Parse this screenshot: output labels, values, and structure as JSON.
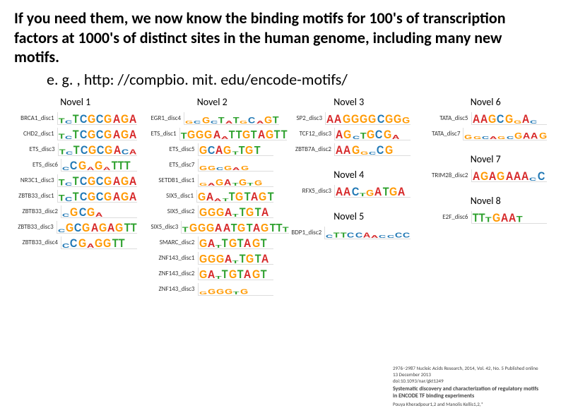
{
  "title_line1": "If you need them, we now know the binding motifs for 100's of transcription factors at 1000's of distinct sites in the human genome, including many new motifs.",
  "subtitle": "e. g. , http: //compbio. mit. edu/encode-motifs/",
  "colors": {
    "A": "#d62728",
    "C": "#1f77b4",
    "G": "#ff9900",
    "T": "#2ca02c",
    "text": "#000000",
    "background": "#ffffff"
  },
  "columns": [
    {
      "header": "Novel 1",
      "rows": [
        {
          "name": "BRCA1_disc1",
          "seq": "TcTCGCGAGA",
          "heights": [
            0.6,
            0.4,
            1,
            1,
            1,
            1,
            1,
            1,
            1,
            1
          ]
        },
        {
          "name": "CHD2_disc1",
          "seq": "TcTCGCGAGA",
          "heights": [
            0.6,
            0.4,
            1,
            1,
            1,
            1,
            1,
            1,
            1,
            1
          ]
        },
        {
          "name": "ETS_disc3",
          "seq": "TcTCGCGACA",
          "heights": [
            0.6,
            0.4,
            1,
            1,
            1,
            1,
            1,
            1,
            0.6,
            0.6
          ]
        },
        {
          "name": "ETS_disc6",
          "seq": "cCGaGaTTT",
          "heights": [
            0.4,
            1,
            1,
            0.4,
            1,
            0.4,
            1,
            1,
            1
          ]
        },
        {
          "name": "NR3C1_disc3",
          "seq": "TCTCGCGAGA",
          "heights": [
            0.7,
            0.4,
            1,
            1,
            1,
            1,
            1,
            1,
            1,
            1
          ]
        },
        {
          "name": "ZBTB33_disc1",
          "seq": "TCTCGCGAGA",
          "heights": [
            0.7,
            0.5,
            1,
            1,
            1,
            1,
            1,
            1,
            1,
            1
          ]
        },
        {
          "name": "ZBTB33_disc2",
          "seq": "cGCGa",
          "heights": [
            0.4,
            1,
            1,
            1,
            0.5
          ]
        },
        {
          "name": "ZBTB33_disc3",
          "seq": "cGCGAGAGTT",
          "heights": [
            0.4,
            1,
            1,
            1,
            1,
            1,
            1,
            1,
            1,
            1
          ]
        },
        {
          "name": "ZBTB33_disc4",
          "seq": "cCGaGGTT",
          "heights": [
            0.5,
            1,
            1,
            0.5,
            1,
            1,
            1,
            1
          ]
        }
      ]
    },
    {
      "header": "Novel 2",
      "rows": [
        {
          "name": "EGR1_disc4",
          "seq": "gcGcTaTgCaGT",
          "heights": [
            0.3,
            0.3,
            0.7,
            0.3,
            0.7,
            0.3,
            0.7,
            0.3,
            0.7,
            0.3,
            0.8,
            0.8
          ]
        },
        {
          "name": "ETS_disc1",
          "seq": "TGGGAaTTGTAGTT",
          "heights": [
            0.7,
            0.9,
            0.9,
            0.9,
            0.9,
            0.3,
            0.9,
            0.9,
            0.9,
            0.9,
            1,
            1,
            1,
            1
          ]
        },
        {
          "name": "ETS_disc5",
          "seq": "GCAGtTGT",
          "heights": [
            0.9,
            0.9,
            1,
            0.9,
            0.4,
            0.9,
            0.9,
            0.9
          ]
        },
        {
          "name": "ETS_disc7",
          "seq": "GGcGaG",
          "heights": [
            0.5,
            0.5,
            0.3,
            0.5,
            0.3,
            0.5
          ]
        },
        {
          "name": "SETDB1_disc1",
          "seq": "gaGAtGtG",
          "heights": [
            0.3,
            0.3,
            0.7,
            0.7,
            0.3,
            0.7,
            0.3,
            0.6
          ]
        },
        {
          "name": "SIX5_disc1",
          "seq": "GAatTGTAGT",
          "heights": [
            0.9,
            0.9,
            0.3,
            0.3,
            1,
            1,
            1,
            1,
            1,
            1
          ]
        },
        {
          "name": "SIX5_disc2",
          "seq": "GGGAtTGTA",
          "heights": [
            0.9,
            0.9,
            0.9,
            0.9,
            0.3,
            1,
            1,
            1,
            1
          ]
        },
        {
          "name": "SIX5_disc3",
          "seq": "TGGGAATGTAGTTT",
          "heights": [
            0.6,
            0.9,
            0.9,
            0.9,
            0.9,
            0.9,
            0.9,
            0.9,
            0.9,
            0.9,
            0.9,
            0.9,
            0.9,
            0.6
          ]
        },
        {
          "name": "SMARC_disc2",
          "seq": "GAtTGTAGT",
          "heights": [
            0.9,
            0.9,
            0.3,
            1,
            1,
            1,
            1,
            1,
            1
          ]
        },
        {
          "name": "ZNF143_disc1",
          "seq": "GGGAtTGTA",
          "heights": [
            0.9,
            0.9,
            0.9,
            0.9,
            0.3,
            1,
            1,
            1,
            1
          ]
        },
        {
          "name": "ZNF143_disc2",
          "seq": "GAtTGTAGT",
          "heights": [
            0.9,
            0.9,
            0.3,
            1,
            1,
            1,
            1,
            1,
            1
          ]
        },
        {
          "name": "ZNF143_disc3",
          "seq": "gGGGtG",
          "heights": [
            0.3,
            0.6,
            0.6,
            0.6,
            0.3,
            0.6
          ]
        }
      ]
    },
    {
      "header_groups": [
        {
          "header": "Novel 3",
          "rows": [
            {
              "name": "SP2_disc3",
              "seq": "AAGGGGCGGG",
              "heights": [
                0.9,
                1,
                1,
                1,
                1,
                1,
                1,
                1,
                1,
                0.7
              ]
            },
            {
              "name": "TCF12_disc3",
              "seq": "AGcTGCGa",
              "heights": [
                1,
                1,
                0.4,
                0.7,
                1,
                1,
                1,
                0.5
              ]
            },
            {
              "name": "ZBTB7A_disc2",
              "seq": "AAGgcCG",
              "heights": [
                1,
                1,
                1,
                0.4,
                0.3,
                1,
                1
              ]
            }
          ]
        },
        {
          "header": "Novel 4",
          "rows": [
            {
              "name": "RFX5_disc3",
              "seq": "AACtGATGA",
              "heights": [
                1,
                1,
                1,
                0.4,
                0.7,
                1,
                1,
                1,
                1
              ]
            }
          ]
        },
        {
          "header": "Novel 5",
          "rows": [
            {
              "name": "BDP1_disc2",
              "seq": "cTTCCAaccCC",
              "heights": [
                0.4,
                0.6,
                0.6,
                0.6,
                0.6,
                0.6,
                0.3,
                0.3,
                0.3,
                0.6,
                0.6
              ]
            }
          ]
        }
      ]
    },
    {
      "header_groups": [
        {
          "header": "Novel 6",
          "rows": [
            {
              "name": "TATA_disc5",
              "seq": "AAGCGgAc",
              "heights": [
                1,
                1,
                1,
                1,
                1,
                0.4,
                1,
                0.4
              ]
            },
            {
              "name": "TATA_disc7",
              "seq": "GgcagcGAAG",
              "heights": [
                0.5,
                0.3,
                0.3,
                0.3,
                0.3,
                0.3,
                0.7,
                0.7,
                0.7,
                0.7
              ]
            }
          ]
        },
        {
          "header": "Novel 7",
          "rows": [
            {
              "name": "TRIM28_disc2",
              "seq": "AGAGAAAcC",
              "heights": [
                1,
                1,
                1,
                1,
                1,
                1,
                1,
                0.4,
                1
              ]
            }
          ]
        },
        {
          "header": "Novel 8",
          "rows": [
            {
              "name": "E2F_disc6",
              "seq": "TTTGAAT",
              "heights": [
                1,
                1,
                0.6,
                1,
                1,
                1,
                0.7
              ]
            }
          ]
        }
      ]
    }
  ],
  "citation": {
    "journal_line": "2976–2987  Nucleic Acids Research, 2014, Vol. 42, No. 5        Published online 13 December 2013",
    "doi": "doi:10.1093/nar/gkt1249",
    "paper_title": "Systematic discovery and characterization of regulatory motifs in ENCODE TF binding experiments",
    "authors": "Pouya Kheradpour1,2 and Manolis Kellis1,2,*"
  }
}
